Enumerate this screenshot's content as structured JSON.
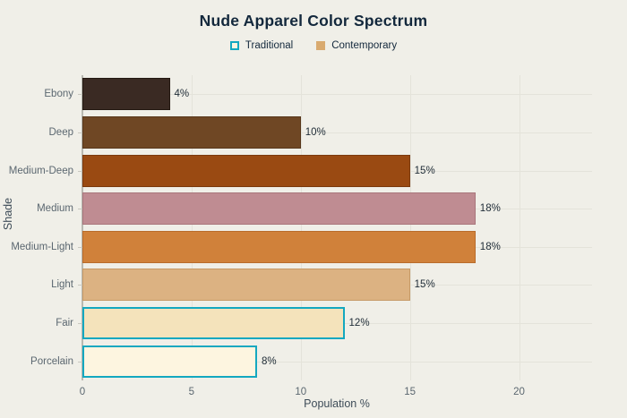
{
  "title": "Nude Apparel Color Spectrum",
  "legend": {
    "items": [
      {
        "label": "Traditional",
        "swatch_fill": "#fdf5e0",
        "swatch_border": "#14a8c0"
      },
      {
        "label": "Contemporary",
        "swatch_fill": "#d9aa6f",
        "swatch_border": "#d9aa6f"
      }
    ]
  },
  "chart_data": {
    "type": "bar",
    "orientation": "horizontal",
    "title": "Nude Apparel Color Spectrum",
    "xlabel": "Population %",
    "ylabel": "Shade",
    "xlim": [
      0,
      23.3
    ],
    "x_ticks": [
      0,
      5,
      10,
      15,
      20
    ],
    "grid": true,
    "legend_position": "top",
    "categories": [
      "Ebony",
      "Deep",
      "Medium-Deep",
      "Medium",
      "Medium-Light",
      "Light",
      "Fair",
      "Porcelain"
    ],
    "values": [
      4,
      10,
      15,
      18,
      18,
      15,
      12,
      8
    ],
    "value_labels": [
      "4%",
      "10%",
      "15%",
      "18%",
      "18%",
      "15%",
      "12%",
      "8%"
    ],
    "series_of": [
      "Contemporary",
      "Contemporary",
      "Contemporary",
      "Contemporary",
      "Contemporary",
      "Contemporary",
      "Traditional",
      "Traditional"
    ],
    "bar_fills": [
      "#3a2a23",
      "#6f4724",
      "#9a4a12",
      "#bf8c92",
      "#d0813a",
      "#dcb282",
      "#f4e3bb",
      "#fdf5e0"
    ],
    "bar_borders": [
      "#241912",
      "#58381c",
      "#7b3a0e",
      "#a9767c",
      "#b96c2b",
      "#c79a67",
      "#14a8c0",
      "#14a8c0"
    ]
  },
  "colors": {
    "background": "#f0efe8",
    "title_text": "#13283c",
    "muted_text": "#5b6770",
    "gridline": "#e4e3da",
    "axis_line": "#b9b9b1",
    "traditional_accent": "#14a8c0"
  }
}
